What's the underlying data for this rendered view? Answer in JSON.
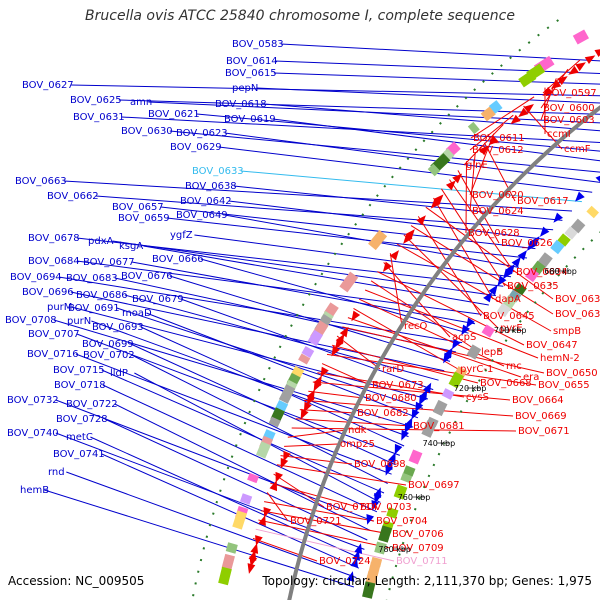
{
  "map": {
    "title": "Brucella ovis ATCC 25840 chromosome I, complete sequence",
    "accession": "Accession: NC_009505",
    "topology": "Topology: circular; Length: 2,111,370 bp; Genes: 1,975",
    "colors": {
      "forward_label": "#0000cc",
      "reverse_label": "#ee0000",
      "highlight_forward": "#33bbee",
      "highlight_reverse": "#f0a0d0",
      "backbone": "#808080",
      "tick": "#2a7a2a"
    },
    "kbp_ticks": [
      "620 kbp",
      "640 kbp",
      "660 kbp",
      "680 kbp",
      "700 kbp",
      "720 kbp",
      "740 kbp",
      "760 kbp",
      "780 kbp"
    ],
    "forward_labels": [
      "BOV_0583",
      "BOV_0614",
      "BOV_0615",
      "BOV_0627",
      "pepN",
      "BOV_0625",
      "amn",
      "BOV_0618",
      "BOV_0631",
      "BOV_0621",
      "BOV_0619",
      "BOV_0630",
      "BOV_0623",
      "BOV_0629",
      "BOV_0633",
      "BOV_0663",
      "BOV_0638",
      "BOV_0662",
      "BOV_0642",
      "BOV_0657",
      "BOV_0659",
      "BOV_0649",
      "ygfZ",
      "BOV_0678",
      "pdxA",
      "ksgA",
      "BOV_0684",
      "BOV_0677",
      "BOV_0666",
      "BOV_0694",
      "BOV_0683",
      "BOV_0676",
      "BOV_0696",
      "BOV_0686",
      "BOV_0679",
      "purM",
      "BOV_0691",
      "moaD",
      "BOV_0708",
      "purN",
      "BOV_0693",
      "BOV_0707",
      "BOV_0699",
      "BOV_0716",
      "BOV_0702",
      "BOV_0715",
      "lldP",
      "BOV_0718",
      "BOV_0732",
      "BOV_0722",
      "BOV_0728",
      "BOV_0740",
      "metC",
      "BOV_0741",
      "rnd",
      "hemB"
    ],
    "reverse_labels": [
      "BOV_0597",
      "BOV_0600",
      "BOV_0603",
      "ccmI",
      "BOV_0611",
      "ccmF",
      "BOV_0612",
      "glnE",
      "BOV_0620",
      "BOV_0617",
      "BOV_0624",
      "BOV_0628",
      "BOV_0626",
      "BOV_0634",
      "BOV_0635",
      "dapA",
      "BOV_0636",
      "BOV_0645",
      "BOV_0639",
      "pyrE",
      "smpB",
      "recO",
      "acpS",
      "BOV_0647",
      "lepB",
      "hemN-2",
      "rnc",
      "pyrC-1",
      "era",
      "BOV_0650",
      "rarD",
      "BOV_0668",
      "BOV_0655",
      "BOV_0673",
      "cysS",
      "BOV_0664",
      "BOV_0680",
      "BOV_0669",
      "BOV_0682",
      "BOV_0681",
      "BOV_0671",
      "ndk",
      "omp25",
      "BOV_0698",
      "BOV_0697",
      "BOV_0714",
      "BOV_0703",
      "BOV_0721",
      "BOV_0704",
      "BOV_0706",
      "BOV_0709",
      "BOV_0711",
      "BOV_0724"
    ]
  }
}
